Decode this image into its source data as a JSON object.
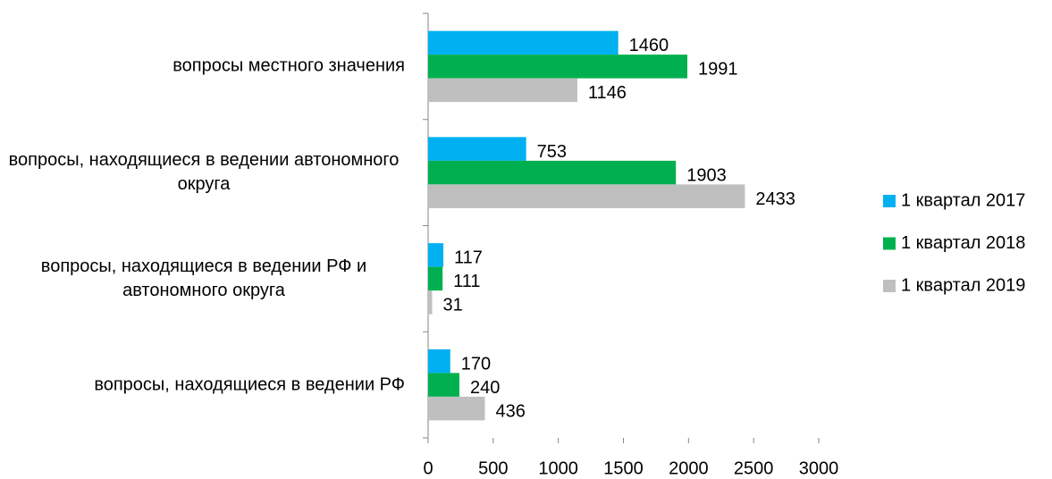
{
  "chart_data": {
    "type": "bar",
    "orientation": "horizontal",
    "categories": [
      "вопросы местного значения",
      "вопросы, находящиеся в ведении автономного округа",
      "вопросы, находящиеся в ведении РФ и автономного округа",
      "вопросы, находящиеся в ведении РФ"
    ],
    "series": [
      {
        "name": "1 квартал 2017",
        "color": "#00b0f0",
        "values": [
          1460,
          753,
          117,
          170
        ]
      },
      {
        "name": "1 квартал 2018",
        "color": "#00b050",
        "values": [
          1991,
          1903,
          111,
          240
        ]
      },
      {
        "name": "1 квартал 2019",
        "color": "#bfbfbf",
        "values": [
          1146,
          2433,
          31,
          436
        ]
      }
    ],
    "xlim": [
      0,
      3000
    ],
    "xticks": [
      0,
      500,
      1000,
      1500,
      2000,
      2500,
      3000
    ],
    "legend": "right",
    "grid": false
  }
}
